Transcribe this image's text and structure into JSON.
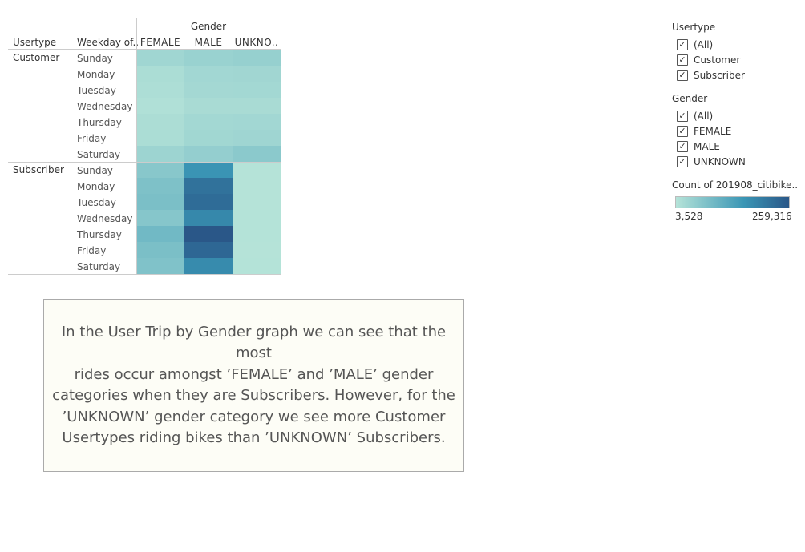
{
  "chart_data": {
    "type": "heatmap",
    "column_group_header": "Gender",
    "row_headers": [
      "Usertype",
      "Weekday of.."
    ],
    "columns": [
      "FEMALE",
      "MALE",
      "UNKNO.."
    ],
    "row_groups": [
      {
        "label": "Customer",
        "rows": [
          {
            "weekday": "Sunday",
            "values": [
              30000,
              38000,
              42000
            ]
          },
          {
            "weekday": "Monday",
            "values": [
              16000,
              27000,
              29000
            ]
          },
          {
            "weekday": "Tuesday",
            "values": [
              14000,
              25000,
              26000
            ]
          },
          {
            "weekday": "Wednesday",
            "values": [
              10000,
              19000,
              19000
            ]
          },
          {
            "weekday": "Thursday",
            "values": [
              15000,
              26000,
              27000
            ]
          },
          {
            "weekday": "Friday",
            "values": [
              16000,
              28000,
              31000
            ]
          },
          {
            "weekday": "Saturday",
            "values": [
              34000,
              45000,
              56000
            ]
          }
        ]
      },
      {
        "label": "Subscriber",
        "rows": [
          {
            "weekday": "Sunday",
            "values": [
              60000,
              160000,
              4000
            ]
          },
          {
            "weekday": "Monday",
            "values": [
              72000,
              215000,
              3528
            ]
          },
          {
            "weekday": "Tuesday",
            "values": [
              76000,
              225000,
              4000
            ]
          },
          {
            "weekday": "Wednesday",
            "values": [
              62000,
              180000,
              4500
            ]
          },
          {
            "weekday": "Thursday",
            "values": [
              88000,
              259316,
              4500
            ]
          },
          {
            "weekday": "Friday",
            "values": [
              76000,
              233000,
              4000
            ]
          },
          {
            "weekday": "Saturday",
            "values": [
              70000,
              175000,
              4500
            ]
          }
        ]
      }
    ],
    "color_scale": {
      "title": "Count of 201908_citibike..",
      "min": 3528,
      "max": 259316,
      "min_label": "3,528",
      "max_label": "259,316",
      "color_low": "#b5e3d8",
      "color_mid": "#3a96b5",
      "color_high": "#2a5788"
    }
  },
  "filters": {
    "usertype": {
      "title": "Usertype",
      "items": [
        {
          "label": "(All)",
          "checked": true
        },
        {
          "label": "Customer",
          "checked": true
        },
        {
          "label": "Subscriber",
          "checked": true
        }
      ]
    },
    "gender": {
      "title": "Gender",
      "items": [
        {
          "label": "(All)",
          "checked": true
        },
        {
          "label": "FEMALE",
          "checked": true
        },
        {
          "label": "MALE",
          "checked": true
        },
        {
          "label": "UNKNOWN",
          "checked": true
        }
      ]
    }
  },
  "note": {
    "text": "In the User Trip by Gender graph we can see that the most\nrides occur amongst  ’FEMALE’ and ’MALE’ gender\ncategories when they are Subscribers. However, for the\n’UNKNOWN’ gender category we see more Customer\nUsertypes riding bikes than ’UNKNOWN’ Subscribers."
  }
}
